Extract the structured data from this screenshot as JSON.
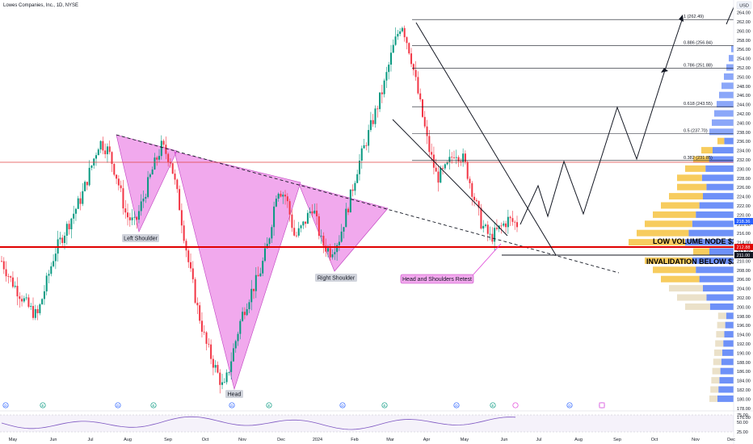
{
  "header": {
    "symbol": "Lowes Companies, Inc., 1D, NYSE"
  },
  "price_axis": {
    "currency": "USD",
    "ticks": [
      "264.00",
      "262.00",
      "260.00",
      "258.00",
      "256.00",
      "254.00",
      "252.00",
      "250.00",
      "248.00",
      "246.00",
      "244.00",
      "242.00",
      "240.00",
      "238.00",
      "236.00",
      "234.00",
      "232.00",
      "230.00",
      "228.00",
      "226.00",
      "224.00",
      "222.00",
      "220.00",
      "218.00",
      "216.00",
      "214.00",
      "212.00",
      "210.00",
      "208.00",
      "206.00",
      "204.00",
      "202.00",
      "200.00",
      "198.00",
      "196.00",
      "194.00",
      "192.00",
      "190.00",
      "188.00",
      "186.00",
      "184.00",
      "182.00",
      "180.00",
      "178.00",
      "176.00"
    ],
    "current_price": "218.36",
    "price_tag_2": "212.88",
    "price_tag_3": "211.00"
  },
  "rsi_axis": {
    "ticks": [
      "75.00",
      "50.00",
      "25.00"
    ]
  },
  "time_axis": [
    "May",
    "Jun",
    "Jul",
    "Aug",
    "Sep",
    "Oct",
    "Nov",
    "Dec",
    "2024",
    "Feb",
    "Mar",
    "Apr",
    "May",
    "Jun",
    "Jul",
    "Aug",
    "Sep",
    "Oct",
    "Nov",
    "Dec"
  ],
  "annotations": {
    "left_shoulder": "Left Shoulder",
    "head": "Head",
    "right_shoulder": "Right Shoulder",
    "retest": "Head and Shoulders Retest",
    "low_volume_node": "LOW VOLUME NODE $212",
    "invalidation": "INVALIDATION BELOW $211"
  },
  "fib_levels": [
    {
      "label": "1 (262.49)",
      "price": 262.49
    },
    {
      "label": "0.886 (256.84)",
      "price": 256.84
    },
    {
      "label": "0.786 (251.88)",
      "price": 251.88
    },
    {
      "label": "0.618 (243.55)",
      "price": 243.55
    },
    {
      "label": "0.5 (237.70)",
      "price": 237.7
    },
    {
      "label": "0.382 (231.85)",
      "price": 231.85
    }
  ],
  "event_markers": [
    "D",
    "E",
    "D",
    "E",
    "D",
    "E",
    "D",
    "E",
    "D",
    "E",
    "D",
    "D"
  ],
  "colors": {
    "up": "#089981",
    "down": "#f23645",
    "pattern": "#e040d8",
    "volume_up": "#f6c342",
    "volume_down": "#3d6cf5",
    "support": "#e00000",
    "accent": "#2962ff"
  },
  "chart_data": {
    "type": "candlestick",
    "title": "Lowes Companies, Inc., 1D, NYSE",
    "ylim": [
      175,
      265
    ],
    "key_levels": {
      "low_volume_node": 212,
      "invalidation": 211,
      "resistance": 231
    },
    "approx_closes": [
      210,
      206,
      203,
      200,
      198,
      205,
      212,
      216,
      220,
      224,
      230,
      236,
      234,
      228,
      220,
      218,
      224,
      230,
      235,
      232,
      222,
      210,
      200,
      192,
      187,
      182,
      190,
      198,
      203,
      207,
      214,
      226,
      224,
      215,
      218,
      222,
      214,
      212,
      215,
      222,
      230,
      236,
      242,
      248,
      256,
      262,
      255,
      245,
      235,
      228,
      230,
      234,
      232,
      225,
      218,
      215,
      217,
      219,
      218
    ]
  }
}
